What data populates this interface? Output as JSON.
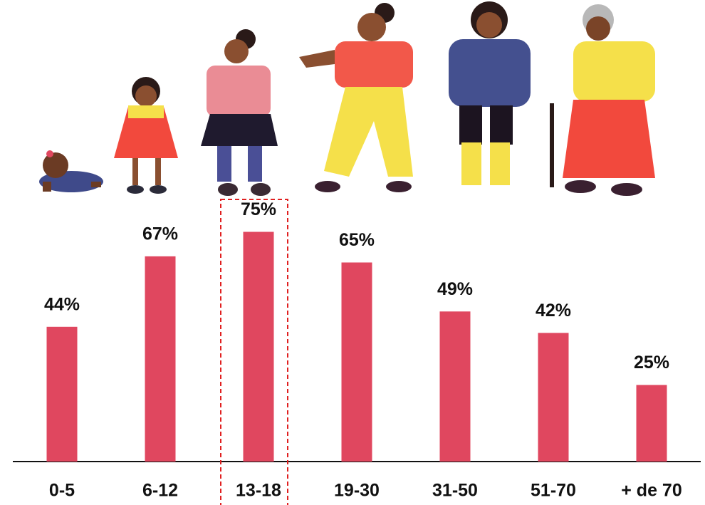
{
  "chart_data": {
    "type": "bar",
    "categories": [
      "0-5",
      "6-12",
      "13-18",
      "19-30",
      "31-50",
      "51-70",
      "+ de 70"
    ],
    "values": [
      44,
      67,
      75,
      65,
      49,
      42,
      25
    ],
    "value_labels": [
      "44%",
      "67%",
      "75%",
      "65%",
      "49%",
      "42%",
      "25%"
    ],
    "color": "#e0475f",
    "ylim": [
      0,
      100
    ],
    "highlight": 2
  }
}
